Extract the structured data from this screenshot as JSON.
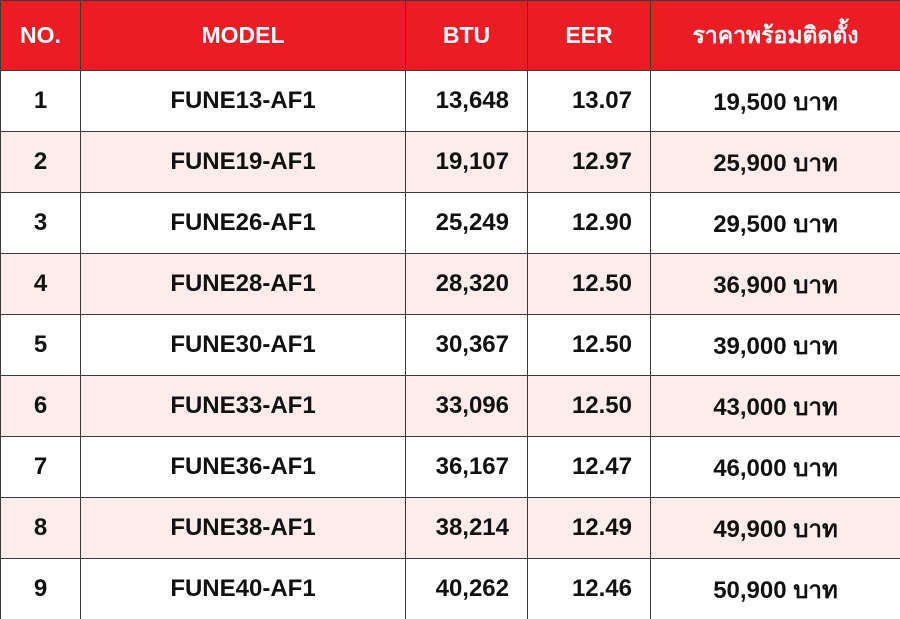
{
  "table": {
    "header": [
      "NO.",
      "MODEL",
      "BTU",
      "EER",
      "ราคาพร้อมติดตั้ง"
    ],
    "rows": [
      [
        "1",
        "FUNE13-AF1",
        "13,648",
        "13.07",
        "19,500 บาท"
      ],
      [
        "2",
        "FUNE19-AF1",
        "19,107",
        "12.97",
        "25,900 บาท"
      ],
      [
        "3",
        "FUNE26-AF1",
        "25,249",
        "12.90",
        "29,500 บาท"
      ],
      [
        "4",
        "FUNE28-AF1",
        "28,320",
        "12.50",
        "36,900 บาท"
      ],
      [
        "5",
        "FUNE30-AF1",
        "30,367",
        "12.50",
        "39,000 บาท"
      ],
      [
        "6",
        "FUNE33-AF1",
        "33,096",
        "12.50",
        "43,000 บาท"
      ],
      [
        "7",
        "FUNE36-AF1",
        "36,167",
        "12.47",
        "46,000 บาท"
      ],
      [
        "8",
        "FUNE38-AF1",
        "38,214",
        "12.49",
        "49,900 บาท"
      ],
      [
        "9",
        "FUNE40-AF1",
        "40,262",
        "12.46",
        "50,900 บาท"
      ]
    ]
  }
}
